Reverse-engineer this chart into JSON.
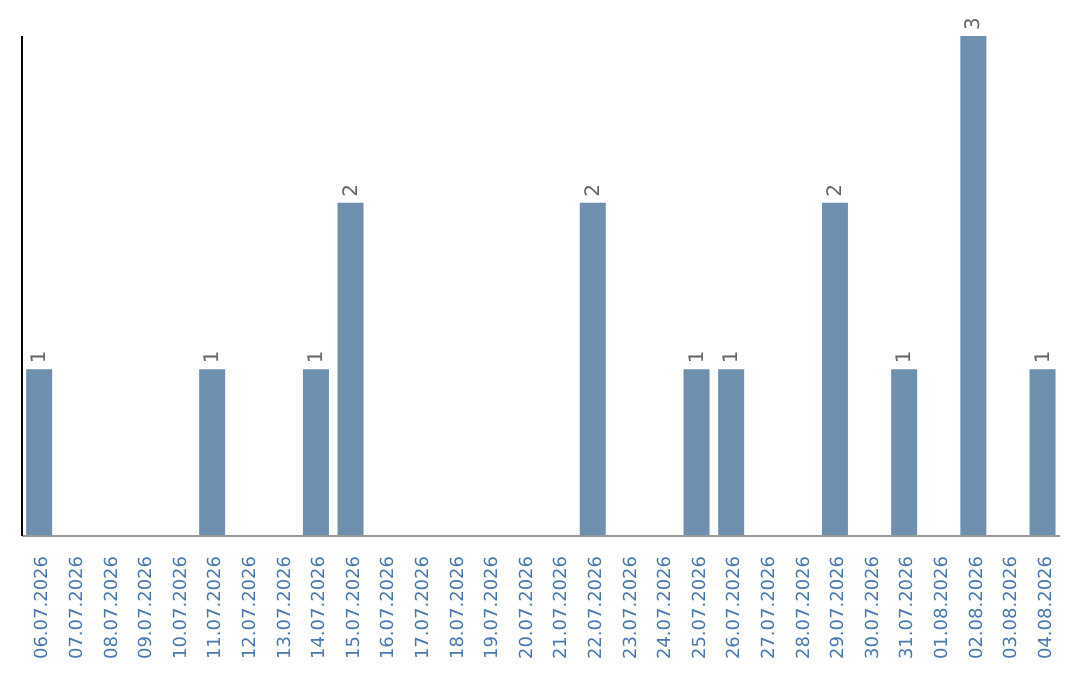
{
  "chart_data": {
    "type": "bar",
    "categories": [
      "06.07.2026",
      "07.07.2026",
      "08.07.2026",
      "09.07.2026",
      "10.07.2026",
      "11.07.2026",
      "12.07.2026",
      "13.07.2026",
      "14.07.2026",
      "15.07.2026",
      "16.07.2026",
      "17.07.2026",
      "18.07.2026",
      "19.07.2026",
      "20.07.2026",
      "21.07.2026",
      "22.07.2026",
      "23.07.2026",
      "24.07.2026",
      "25.07.2026",
      "26.07.2026",
      "27.07.2026",
      "28.07.2026",
      "29.07.2026",
      "30.07.2026",
      "31.07.2026",
      "01.08.2026",
      "02.08.2026",
      "03.08.2026",
      "04.08.2026"
    ],
    "values": [
      1,
      0,
      0,
      0,
      0,
      1,
      0,
      0,
      1,
      2,
      0,
      0,
      0,
      0,
      0,
      0,
      2,
      0,
      0,
      1,
      1,
      0,
      0,
      2,
      0,
      1,
      0,
      3,
      0,
      1
    ],
    "value_labels": [
      "1",
      null,
      null,
      null,
      null,
      "1",
      null,
      null,
      "1",
      "2",
      null,
      null,
      null,
      null,
      null,
      null,
      "2",
      null,
      null,
      "1",
      "1",
      null,
      null,
      "2",
      null,
      "1",
      null,
      "3",
      null,
      "1"
    ],
    "color": "#6e8fae",
    "grid": false,
    "legend": false
  }
}
